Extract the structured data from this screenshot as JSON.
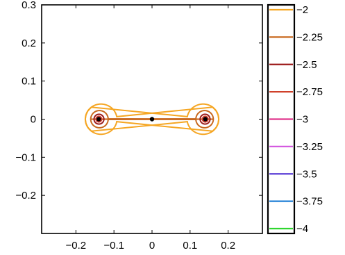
{
  "chart_data": {
    "type": "line",
    "title": "",
    "xlabel": "",
    "ylabel": "",
    "xlim": [
      -0.29,
      0.29
    ],
    "ylim": [
      -0.3,
      0.3
    ],
    "x_ticks": [
      -0.2,
      -0.1,
      0,
      0.1,
      0.2
    ],
    "x_tick_labels": [
      "−0.2",
      "−0.1",
      "0",
      "0.1",
      "0.2"
    ],
    "y_ticks": [
      0.3,
      0.2,
      0.1,
      0,
      -0.1,
      -0.2
    ],
    "y_tick_labels": [
      "0.3",
      "0.2",
      "0.1",
      "0",
      "−0.1",
      "−0.2"
    ],
    "grid": false,
    "legend": "colorbar-right",
    "points": [
      {
        "x": -0.14,
        "y": 0.0,
        "color": "#000000"
      },
      {
        "x": 0.0,
        "y": 0.0,
        "color": "#000000"
      },
      {
        "x": 0.14,
        "y": 0.0,
        "color": "#000000"
      }
    ],
    "contour_sources": [
      -0.14,
      0.14
    ],
    "series": [
      {
        "name": "−2",
        "level": -2.0,
        "color": "#f5a623"
      },
      {
        "name": "−2.25",
        "level": -2.25,
        "color": "#c8681e"
      },
      {
        "name": "−2.5",
        "level": -2.5,
        "color": "#9c1a1a"
      },
      {
        "name": "−2.75",
        "level": -2.75,
        "color": "#d0402a"
      },
      {
        "name": "−3",
        "level": -3.0,
        "color": "#e0368c"
      },
      {
        "name": "−3.25",
        "level": -3.25,
        "color": "#d45ae0"
      },
      {
        "name": "−3.5",
        "level": -3.5,
        "color": "#5b3fd6"
      },
      {
        "name": "−3.75",
        "level": -3.75,
        "color": "#1f7fd6"
      },
      {
        "name": "−4",
        "level": -4.0,
        "color": "#2fd62f"
      }
    ]
  }
}
